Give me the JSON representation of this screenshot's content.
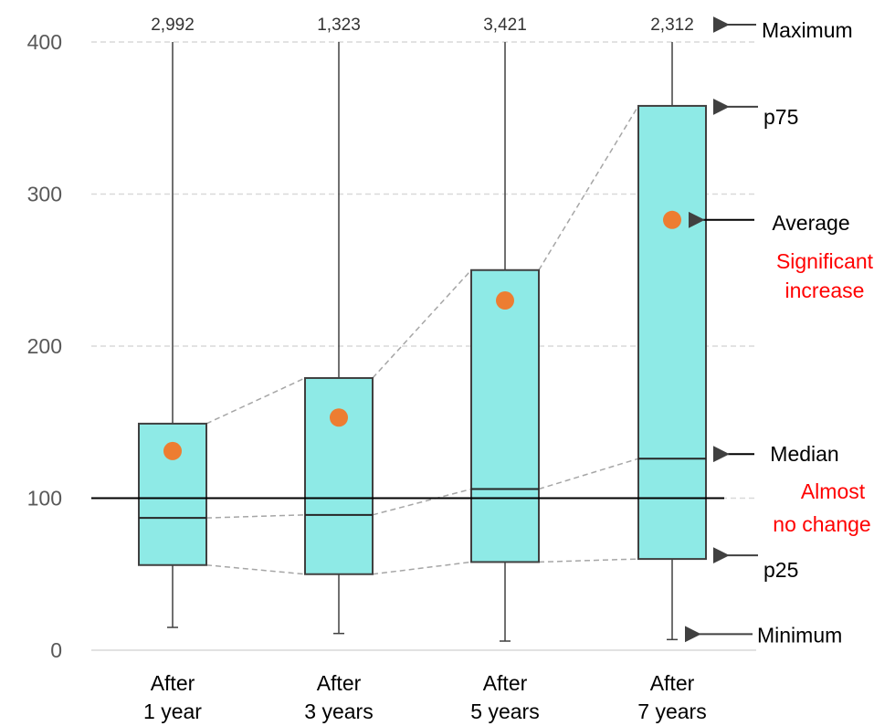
{
  "chart_data": {
    "type": "box",
    "y_ticks": [
      "0",
      "100",
      "200",
      "300",
      "400"
    ],
    "ylim": [
      0,
      400
    ],
    "grid": true,
    "categories": [
      {
        "line1": "After",
        "line2": "1 year"
      },
      {
        "line1": "After",
        "line2": "3 years"
      },
      {
        "line1": "After",
        "line2": "5 years"
      },
      {
        "line1": "After",
        "line2": "7 years"
      }
    ],
    "maximum_labels": [
      "2,992",
      "1,323",
      "3,421",
      "2,312"
    ],
    "boxes": [
      {
        "min": 15,
        "p25": 56,
        "median": 87,
        "p75": 149,
        "average": 131
      },
      {
        "min": 11,
        "p25": 50,
        "median": 89,
        "p75": 179,
        "average": 153
      },
      {
        "min": 6,
        "p25": 58,
        "median": 106,
        "p75": 250,
        "average": 230
      },
      {
        "min": 7,
        "p25": 60,
        "median": 126,
        "p75": 358,
        "average": 283
      }
    ],
    "reference_line": 100,
    "annotations": {
      "maximum": "Maximum",
      "p75": "p75",
      "average": "Average",
      "average_note_line1": "Significant",
      "average_note_line2": "increase",
      "median": "Median",
      "median_note_line1": "Almost",
      "median_note_line2": "no change",
      "p25": "p25",
      "minimum": "Minimum"
    },
    "colors": {
      "box_fill": "#8eeae6",
      "box_stroke": "#404040",
      "average_dot": "#ed7d31",
      "grid": "#d9d9d9",
      "note": "#ff0000"
    }
  }
}
